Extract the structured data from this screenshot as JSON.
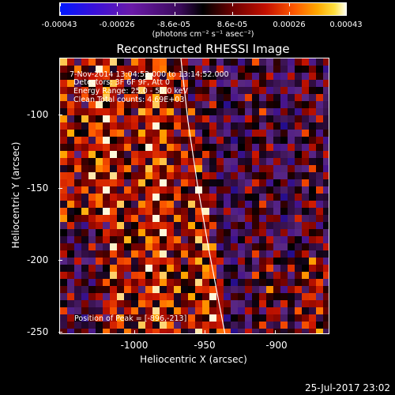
{
  "colorbar": {
    "ticks": [
      "-0.00043",
      "-0.00026",
      "-8.6e-05",
      "8.6e-05",
      "0.00026",
      "0.00043"
    ],
    "units": "(photons cm⁻² s⁻¹ asec⁻²)"
  },
  "title": "Reconstructed RHESSI Image",
  "annotations": {
    "time": "7-Nov-2014 13:04:52.000 to 13:14:52.000",
    "detectors": "Detectors: 3F 6F 9F, Att 0",
    "energy": "Energy Range: 25.0 - 50.0 keV",
    "clean": "Clean    Total counts: 4.69E+03",
    "peak": "Position of Peak = [-896,-213]"
  },
  "axes": {
    "xlabel": "Heliocentric X (arcsec)",
    "ylabel": "Heliocentric Y (arcsec)",
    "xticks": [
      "-1000",
      "-950",
      "-900"
    ],
    "yticks": [
      "-100",
      "-150",
      "-200",
      "-250"
    ],
    "xlim": [
      -1047,
      -863
    ],
    "ylim": [
      -253,
      -65
    ]
  },
  "timestamp": "25-Jul-2017 23:02"
}
